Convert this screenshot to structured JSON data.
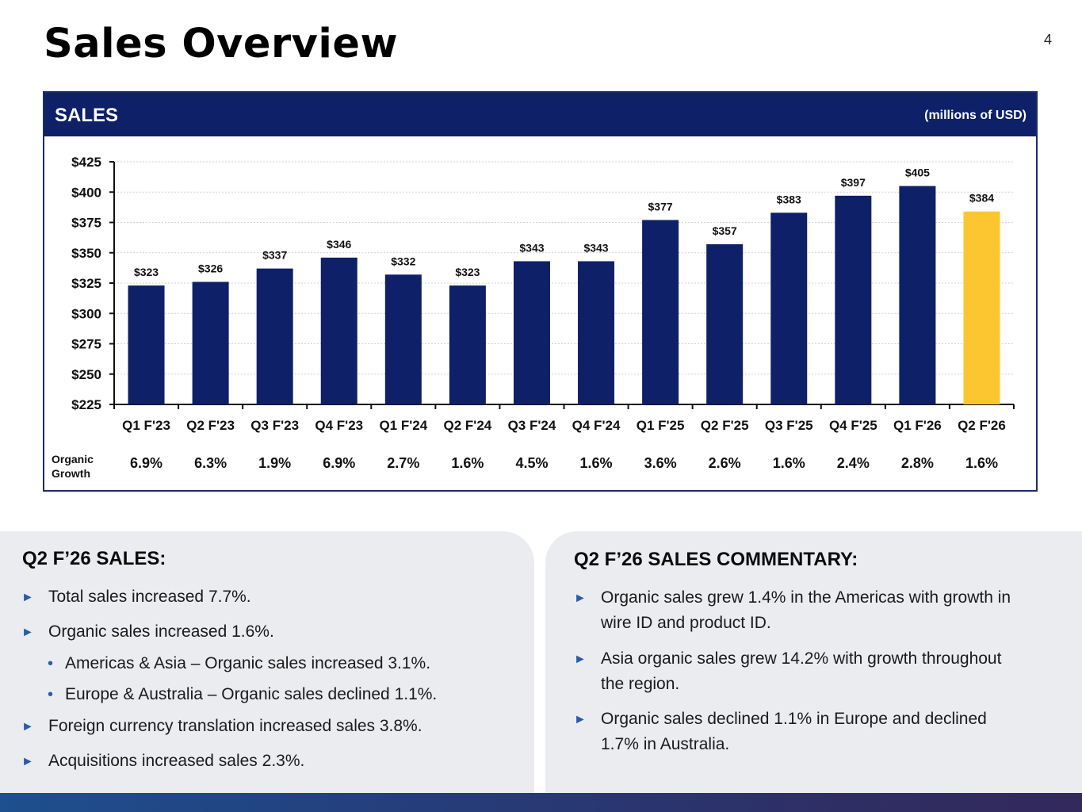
{
  "page": {
    "title": "Sales Overview",
    "number": "4"
  },
  "chart_header": {
    "title": "SALES",
    "units": "(millions of USD)"
  },
  "chart_data": {
    "type": "bar",
    "title": "SALES",
    "ylabel": "millions of USD",
    "ylim": [
      225,
      425
    ],
    "yticks": [
      225,
      250,
      275,
      300,
      325,
      350,
      375,
      400,
      425
    ],
    "ytick_labels": [
      "$225",
      "$250",
      "$275",
      "$300",
      "$325",
      "$350",
      "$375",
      "$400",
      "$425"
    ],
    "categories": [
      "Q1 F'23",
      "Q2 F'23",
      "Q3 F'23",
      "Q4 F'23",
      "Q1 F'24",
      "Q2 F'24",
      "Q3 F'24",
      "Q4 F'24",
      "Q1 F'25",
      "Q2 F'25",
      "Q3 F'25",
      "Q4 F'25",
      "Q1 F'26",
      "Q2 F'26"
    ],
    "values": [
      323,
      326,
      337,
      346,
      332,
      323,
      343,
      343,
      377,
      357,
      383,
      397,
      405,
      384
    ],
    "value_labels": [
      "$323",
      "$326",
      "$337",
      "$346",
      "$332",
      "$323",
      "$343",
      "$343",
      "$377",
      "$357",
      "$383",
      "$397",
      "$405",
      "$384"
    ],
    "organic_growth_label": [
      "Organic",
      "Growth"
    ],
    "organic_growth": [
      "6.9%",
      "6.3%",
      "1.9%",
      "6.9%",
      "2.7%",
      "1.6%",
      "4.5%",
      "1.6%",
      "3.6%",
      "2.6%",
      "1.6%",
      "2.4%",
      "2.8%",
      "1.6%"
    ],
    "colors": {
      "bar": "#0d2068",
      "highlight": "#fbc62f",
      "highlight_index": 13
    },
    "grid": true
  },
  "left_panel": {
    "heading": "Q2 F’26 SALES:",
    "bullets": [
      "Total sales increased 7.7%.",
      "Organic sales increased 1.6%.",
      "Americas & Asia – Organic sales increased 3.1%.",
      "Europe & Australia – Organic sales declined 1.1%.",
      "Foreign currency translation increased sales 3.8%.",
      "Acquisitions increased sales 2.3%."
    ]
  },
  "right_panel": {
    "heading": "Q2 F’26 SALES COMMENTARY:",
    "bullets": [
      [
        "Organic sales grew 1.4% in the Americas with growth in",
        "wire ID and product ID."
      ],
      [
        "Asia organic sales grew 14.2% with growth throughout",
        "the region."
      ],
      [
        "Organic sales declined 1.1% in Europe and declined",
        "1.7% in Australia."
      ]
    ]
  },
  "icons": {
    "bullet_arrow": "▶",
    "bullet_dot": "•"
  },
  "colors": {
    "accent": "#2a5ba8",
    "navy": "#0d2068",
    "panel_bg": "#ebecef"
  }
}
